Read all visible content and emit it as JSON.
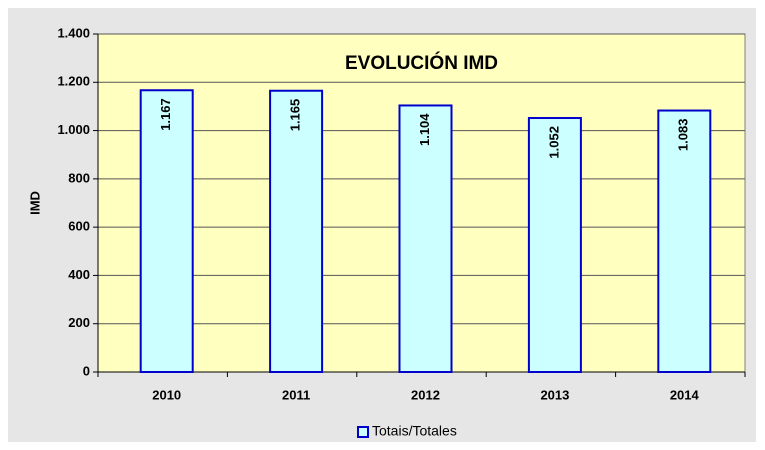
{
  "chart_data": {
    "type": "bar",
    "title": "EVOLUCIÓN IMD",
    "ylabel": "IMD",
    "categories": [
      "2010",
      "2011",
      "2012",
      "2013",
      "2014"
    ],
    "series": [
      {
        "name": "Totais/Totales",
        "color": "#ccffff",
        "edgecolor": "#0000cc",
        "values": [
          1167,
          1165,
          1104,
          1052,
          1083
        ],
        "value_labels": [
          "1.167",
          "1.165",
          "1.104",
          "1.052",
          "1.083"
        ]
      }
    ],
    "ylim": [
      0,
      1400
    ],
    "yticks": [
      0,
      200,
      400,
      600,
      800,
      {
        "value": 1000,
        "label": "1.000"
      },
      {
        "value": 1200,
        "label": "1.200"
      },
      {
        "value": 1400,
        "label": "1.400"
      }
    ],
    "grid": true,
    "legend": "bottom"
  }
}
